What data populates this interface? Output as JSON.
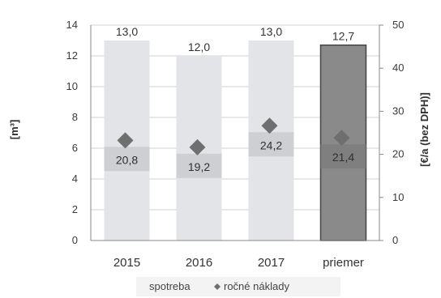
{
  "chart_data": {
    "type": "bar",
    "categories": [
      "2015",
      "2016",
      "2017",
      "priemer"
    ],
    "series": [
      {
        "name": "spotreba",
        "kind": "bar",
        "axis": "left",
        "values": [
          13.0,
          12.0,
          13.0,
          12.7
        ]
      },
      {
        "name": "ročné náklady",
        "kind": "marker",
        "axis": "right",
        "values": [
          20.8,
          19.2,
          24.2,
          21.4
        ]
      }
    ],
    "bar_labels": [
      "13,0",
      "12,0",
      "13,0",
      "12,7"
    ],
    "cost_labels": [
      "20,8",
      "19,2",
      "24,2",
      "21,4"
    ],
    "ylabel": "[m³]",
    "ylabel_right": "[€/a (bez DPH)]",
    "ylim": [
      0,
      14
    ],
    "ylim_right": [
      0,
      50
    ],
    "yticks": [
      0,
      2,
      4,
      6,
      8,
      10,
      12,
      14
    ],
    "yticks_right": [
      0,
      10,
      20,
      30,
      40,
      50
    ],
    "legend": {
      "position": "bottom",
      "entries": [
        "spotreba",
        "ročné náklady"
      ]
    },
    "colors": {
      "bar": "#e2e4e8",
      "bar_highlight": "#8a8a8a",
      "cost_box": "#c9cbcf",
      "marker": "#6f6f6f",
      "grid": "#d0d0d0"
    }
  }
}
